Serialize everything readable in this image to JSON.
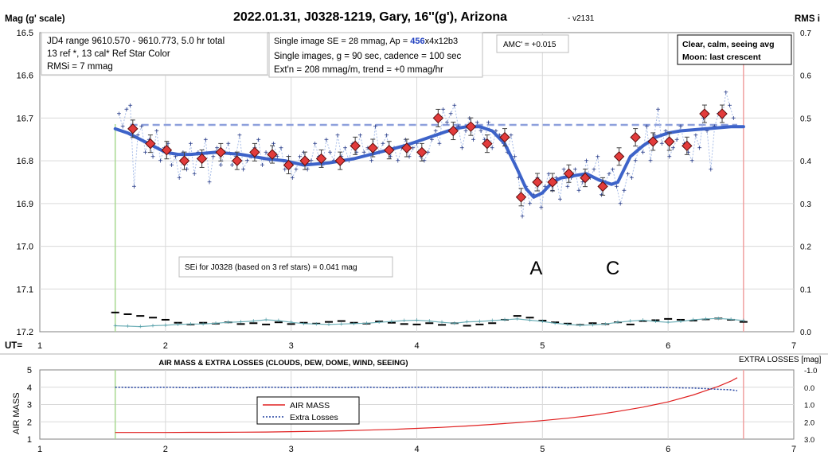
{
  "chart_data": [
    {
      "type": "scatter",
      "title": "2022.01.31, J0328-1219, Gary, 16''(g'), Arizona",
      "version": "- v2131",
      "ylabel": "Mag (g' scale)",
      "y2label": "RMS i",
      "xlabel": "UT=",
      "xlim": [
        1,
        7
      ],
      "ylim": [
        17.2,
        16.5
      ],
      "y2lim": [
        0,
        0.7
      ],
      "xticks": [
        "1",
        "2",
        "3",
        "4",
        "5",
        "6",
        "7"
      ],
      "yticks": [
        "16.5",
        "16.6",
        "16.7",
        "16.8",
        "16.9",
        "17.0",
        "17.1",
        "17.2"
      ],
      "y2ticks": [
        "0.7",
        "0.6",
        "0.5",
        "0.4",
        "0.3",
        "0.2",
        "0.1",
        "0.0"
      ],
      "grid": true,
      "start_ut": 1.6,
      "end_ut": 6.6,
      "reference_level": 16.716,
      "info_box_left": [
        "JD4 range 9610.570 - 9610.773, 5.0 hr total",
        "13 ref *, 13 cal*  Ref Star Color",
        "RMSi = 7 mmag"
      ],
      "info_box_mid": {
        "line1_pre": "Single image SE = 28 mmag, Ap = ",
        "line1_ap": "456",
        "line1_post": "x4x12b3",
        "line2": "Single images, g = 90 sec, cadence = 100 sec",
        "line3": "Ext'n = 208 mmag/m, trend = +0 mmag/hr"
      },
      "amc_label": "AMC' = +0.015",
      "conditions": [
        "Clear, calm, seeing avg",
        "Moon: last crescent"
      ],
      "sei_label": "SEi for J0328 (based on 3 ref stars) = 0.041 mag",
      "annotations": [
        {
          "text": "A",
          "x": 4.95
        },
        {
          "text": "C",
          "x": 5.56
        }
      ],
      "series": [
        {
          "kind": "binned-means",
          "x": [
            1.74,
            1.88,
            2.01,
            2.15,
            2.29,
            2.44,
            2.57,
            2.71,
            2.85,
            2.98,
            3.11,
            3.24,
            3.39,
            3.51,
            3.65,
            3.78,
            3.92,
            4.04,
            4.17,
            4.29,
            4.43,
            4.56,
            4.7,
            4.83,
            4.96,
            5.08,
            5.21,
            5.34,
            5.48,
            5.61,
            5.74,
            5.88,
            6.01,
            6.15,
            6.29,
            6.43
          ],
          "y": [
            16.725,
            16.76,
            16.775,
            16.8,
            16.795,
            16.78,
            16.8,
            16.78,
            16.785,
            16.81,
            16.8,
            16.795,
            16.8,
            16.765,
            16.77,
            16.775,
            16.77,
            16.78,
            16.7,
            16.73,
            16.72,
            16.76,
            16.745,
            16.885,
            16.85,
            16.85,
            16.83,
            16.84,
            16.86,
            16.79,
            16.745,
            16.755,
            16.755,
            16.765,
            16.69,
            16.69
          ]
        },
        {
          "kind": "single-images",
          "x": [
            1.63,
            1.66,
            1.69,
            1.72,
            1.75,
            1.78,
            1.81,
            1.84,
            1.87,
            1.9,
            1.93,
            1.96,
            1.99,
            2.02,
            2.05,
            2.08,
            2.11,
            2.14,
            2.17,
            2.2,
            2.23,
            2.26,
            2.29,
            2.32,
            2.35,
            2.38,
            2.41,
            2.44,
            2.47,
            2.5,
            2.53,
            2.56,
            2.59,
            2.62,
            2.65,
            2.68,
            2.71,
            2.74,
            2.77,
            2.8,
            2.83,
            2.86,
            2.89,
            2.92,
            2.95,
            2.98,
            3.01,
            3.04,
            3.07,
            3.1,
            3.13,
            3.16,
            3.19,
            3.22,
            3.25,
            3.28,
            3.31,
            3.34,
            3.37,
            3.4,
            3.43,
            3.46,
            3.49,
            3.52,
            3.55,
            3.58,
            3.61,
            3.64,
            3.67,
            3.7,
            3.73,
            3.76,
            3.79,
            3.82,
            3.85,
            3.88,
            3.91,
            3.94,
            3.97,
            4.0,
            4.03,
            4.06,
            4.09,
            4.12,
            4.15,
            4.18,
            4.21,
            4.24,
            4.27,
            4.3,
            4.33,
            4.36,
            4.39,
            4.42,
            4.45,
            4.48,
            4.51,
            4.54,
            4.57,
            4.6,
            4.63,
            4.66,
            4.69,
            4.72,
            4.75,
            4.78,
            4.81,
            4.84,
            4.87,
            4.9,
            4.93,
            4.96,
            4.99,
            5.02,
            5.05,
            5.08,
            5.11,
            5.14,
            5.17,
            5.2,
            5.23,
            5.26,
            5.29,
            5.32,
            5.35,
            5.38,
            5.41,
            5.44,
            5.47,
            5.5,
            5.53,
            5.56,
            5.59,
            5.62,
            5.65,
            5.68,
            5.71,
            5.74,
            5.77,
            5.8,
            5.83,
            5.86,
            5.89,
            5.92,
            5.95,
            5.98,
            6.01,
            6.04,
            6.07,
            6.1,
            6.13,
            6.16,
            6.19,
            6.22,
            6.25,
            6.28,
            6.31,
            6.34,
            6.37,
            6.4,
            6.43,
            6.46,
            6.49,
            6.52
          ],
          "y": [
            16.69,
            16.72,
            16.68,
            16.67,
            16.86,
            16.74,
            16.72,
            16.78,
            16.75,
            16.79,
            16.73,
            16.8,
            16.77,
            16.76,
            16.81,
            16.79,
            16.84,
            16.78,
            16.82,
            16.76,
            16.83,
            16.78,
            16.79,
            16.75,
            16.85,
            16.79,
            16.77,
            16.81,
            16.78,
            16.76,
            16.81,
            16.79,
            16.74,
            16.82,
            16.8,
            16.79,
            16.77,
            16.75,
            16.81,
            16.78,
            16.8,
            16.76,
            16.79,
            16.77,
            16.82,
            16.79,
            16.84,
            16.82,
            16.79,
            16.78,
            16.82,
            16.8,
            16.76,
            16.79,
            16.81,
            16.75,
            16.78,
            16.8,
            16.74,
            16.79,
            16.77,
            16.8,
            16.76,
            16.78,
            16.74,
            16.78,
            16.77,
            16.8,
            16.72,
            16.78,
            16.76,
            16.74,
            16.79,
            16.77,
            16.8,
            16.77,
            16.75,
            16.79,
            16.77,
            16.76,
            16.79,
            16.8,
            16.78,
            16.75,
            16.73,
            16.76,
            16.68,
            16.71,
            16.69,
            16.67,
            16.72,
            16.77,
            16.73,
            16.7,
            16.75,
            16.71,
            16.73,
            16.75,
            16.71,
            16.77,
            16.73,
            16.74,
            16.76,
            16.78,
            16.74,
            16.79,
            16.84,
            16.93,
            16.86,
            16.9,
            16.88,
            16.84,
            16.91,
            16.86,
            16.83,
            16.87,
            16.84,
            16.89,
            16.82,
            16.86,
            16.84,
            16.82,
            16.87,
            16.85,
            16.8,
            16.84,
            16.82,
            16.79,
            16.88,
            16.85,
            16.83,
            16.82,
            16.86,
            16.9,
            16.87,
            16.83,
            16.84,
            16.8,
            16.77,
            16.78,
            16.72,
            16.8,
            16.74,
            16.68,
            16.76,
            16.73,
            16.79,
            16.77,
            16.75,
            16.72,
            16.76,
            16.78,
            16.8,
            16.74,
            16.77,
            16.7,
            16.73,
            16.82,
            16.72,
            16.69,
            16.7,
            16.64,
            16.67,
            16.7
          ]
        },
        {
          "kind": "fit",
          "x": [
            1.6,
            1.7,
            1.8,
            1.9,
            2.0,
            2.1,
            2.2,
            2.4,
            2.6,
            2.8,
            2.95,
            3.1,
            3.3,
            3.5,
            3.7,
            3.9,
            4.0,
            4.1,
            4.2,
            4.3,
            4.4,
            4.5,
            4.6,
            4.7,
            4.8,
            4.87,
            4.93,
            5.0,
            5.08,
            5.15,
            5.25,
            5.35,
            5.45,
            5.55,
            5.6,
            5.65,
            5.7,
            5.8,
            5.9,
            6.0,
            6.1,
            6.3,
            6.5,
            6.6
          ],
          "y": [
            16.725,
            16.735,
            16.75,
            16.765,
            16.78,
            16.785,
            16.785,
            16.78,
            16.785,
            16.795,
            16.8,
            16.81,
            16.805,
            16.795,
            16.78,
            16.765,
            16.755,
            16.745,
            16.735,
            16.725,
            16.72,
            16.72,
            16.73,
            16.76,
            16.82,
            16.865,
            16.885,
            16.875,
            16.85,
            16.84,
            16.835,
            16.83,
            16.845,
            16.855,
            16.85,
            16.82,
            16.79,
            16.765,
            16.745,
            16.735,
            16.73,
            16.725,
            16.72,
            16.72
          ]
        },
        {
          "kind": "rms-ref",
          "x": [
            1.6,
            1.7,
            1.8,
            1.9,
            2.0,
            2.1,
            2.2,
            2.3,
            2.4,
            2.5,
            2.6,
            2.7,
            2.8,
            2.9,
            3.0,
            3.1,
            3.2,
            3.3,
            3.4,
            3.5,
            3.6,
            3.7,
            3.8,
            3.9,
            4.0,
            4.1,
            4.2,
            4.3,
            4.4,
            4.5,
            4.6,
            4.7,
            4.8,
            4.9,
            5.0,
            5.1,
            5.2,
            5.3,
            5.4,
            5.5,
            5.6,
            5.7,
            5.8,
            5.9,
            6.0,
            6.1,
            6.2,
            6.3,
            6.4,
            6.5,
            6.6
          ],
          "y": [
            0.014,
            0.013,
            0.012,
            0.014,
            0.015,
            0.017,
            0.018,
            0.018,
            0.02,
            0.022,
            0.023,
            0.025,
            0.028,
            0.026,
            0.022,
            0.019,
            0.018,
            0.017,
            0.018,
            0.019,
            0.02,
            0.022,
            0.024,
            0.026,
            0.027,
            0.025,
            0.022,
            0.02,
            0.023,
            0.024,
            0.026,
            0.028,
            0.03,
            0.027,
            0.024,
            0.02,
            0.017,
            0.015,
            0.016,
            0.018,
            0.022,
            0.025,
            0.027,
            0.024,
            0.022,
            0.024,
            0.028,
            0.03,
            0.031,
            0.029,
            0.026
          ]
        },
        {
          "kind": "rms-target",
          "x": [
            1.6,
            1.7,
            1.8,
            1.9,
            2.0,
            2.1,
            2.2,
            2.3,
            2.4,
            2.5,
            2.6,
            2.7,
            2.8,
            2.9,
            3.0,
            3.1,
            3.2,
            3.3,
            3.4,
            3.5,
            3.6,
            3.7,
            3.8,
            3.9,
            4.0,
            4.1,
            4.2,
            4.3,
            4.4,
            4.5,
            4.6,
            4.7,
            4.8,
            4.9,
            5.0,
            5.1,
            5.2,
            5.3,
            5.4,
            5.5,
            5.6,
            5.7,
            5.8,
            5.9,
            6.0,
            6.1,
            6.2,
            6.3,
            6.4,
            6.5,
            6.6
          ],
          "y": [
            0.045,
            0.041,
            0.037,
            0.033,
            0.028,
            0.021,
            0.017,
            0.021,
            0.019,
            0.022,
            0.018,
            0.02,
            0.017,
            0.022,
            0.018,
            0.021,
            0.019,
            0.023,
            0.025,
            0.021,
            0.019,
            0.024,
            0.021,
            0.018,
            0.017,
            0.02,
            0.016,
            0.02,
            0.014,
            0.017,
            0.02,
            0.028,
            0.037,
            0.033,
            0.026,
            0.022,
            0.019,
            0.016,
            0.02,
            0.018,
            0.022,
            0.017,
            0.025,
            0.027,
            0.03,
            0.028,
            0.026,
            0.029,
            0.031,
            0.028,
            0.023
          ]
        }
      ]
    },
    {
      "type": "line",
      "title": "AIR MASS & EXTRA LOSSES (CLOUDS, DEW, DOME, WIND, SEEING)",
      "ylabel": "AIR MASS",
      "y2label": "EXTRA LOSSES [mag]",
      "xlim": [
        1,
        7
      ],
      "ylim": [
        1,
        5
      ],
      "y2lim": [
        -1.0,
        3.0
      ],
      "xticks": [
        "1",
        "2",
        "3",
        "4",
        "5",
        "6",
        "7"
      ],
      "yticks": [
        "5",
        "4",
        "3",
        "2",
        "1"
      ],
      "y2ticks": [
        "-1.0",
        "0.0",
        "1.0",
        "2.0",
        "3.0"
      ],
      "legend": [
        "AIR MASS",
        "Extra Losses"
      ],
      "series": [
        {
          "name": "AIR MASS",
          "x": [
            1.6,
            1.8,
            2.0,
            2.2,
            2.4,
            2.6,
            2.8,
            3.0,
            3.2,
            3.4,
            3.6,
            3.8,
            4.0,
            4.2,
            4.4,
            4.6,
            4.8,
            5.0,
            5.2,
            5.4,
            5.6,
            5.8,
            6.0,
            6.2,
            6.3,
            6.4,
            6.5,
            6.55
          ],
          "y": [
            1.38,
            1.38,
            1.38,
            1.39,
            1.39,
            1.4,
            1.41,
            1.43,
            1.45,
            1.48,
            1.52,
            1.56,
            1.62,
            1.68,
            1.76,
            1.85,
            1.95,
            2.07,
            2.21,
            2.38,
            2.6,
            2.85,
            3.15,
            3.55,
            3.8,
            4.05,
            4.35,
            4.55
          ]
        },
        {
          "name": "Extra Losses",
          "x": [
            1.6,
            1.8,
            2.0,
            2.2,
            2.4,
            2.6,
            2.8,
            3.0,
            3.2,
            3.4,
            3.6,
            3.8,
            4.0,
            4.2,
            4.4,
            4.6,
            4.8,
            5.0,
            5.2,
            5.4,
            5.6,
            5.8,
            6.0,
            6.2,
            6.3,
            6.4,
            6.5,
            6.55
          ],
          "y": [
            0.0,
            0.02,
            0.0,
            0.03,
            0.0,
            0.03,
            0.0,
            0.02,
            0.0,
            0.02,
            0.0,
            0.03,
            0.0,
            0.01,
            0.02,
            0.0,
            0.03,
            0.0,
            0.03,
            0.0,
            0.02,
            0.01,
            0.02,
            0.05,
            0.08,
            0.12,
            0.15,
            0.2
          ]
        }
      ]
    }
  ]
}
